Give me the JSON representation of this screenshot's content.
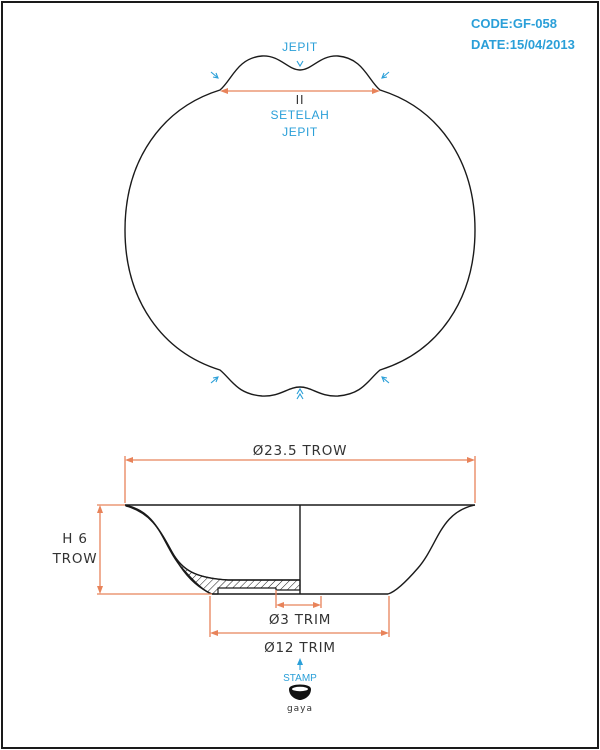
{
  "header": {
    "code": "CODE:GF-058",
    "date": "DATE:15/04/2013"
  },
  "top_view": {
    "pinch_label": "JEPIT",
    "equal_mark": "II",
    "after_label_line1": "SETELAH",
    "after_label_line2": "JEPIT"
  },
  "side_view": {
    "diameter_top": "Ø23.5 TROW",
    "height_line1": "H 6",
    "height_line2": "TROW",
    "foot_inner": "Ø3 TRIM",
    "foot_outer": "Ø12 TRIM"
  },
  "stamp": {
    "label": "STAMP",
    "brand": "gaya"
  },
  "colors": {
    "annotation_blue": "#2a9fd8",
    "dimension_orange": "#e8835a",
    "outline": "#1a1a1a"
  }
}
